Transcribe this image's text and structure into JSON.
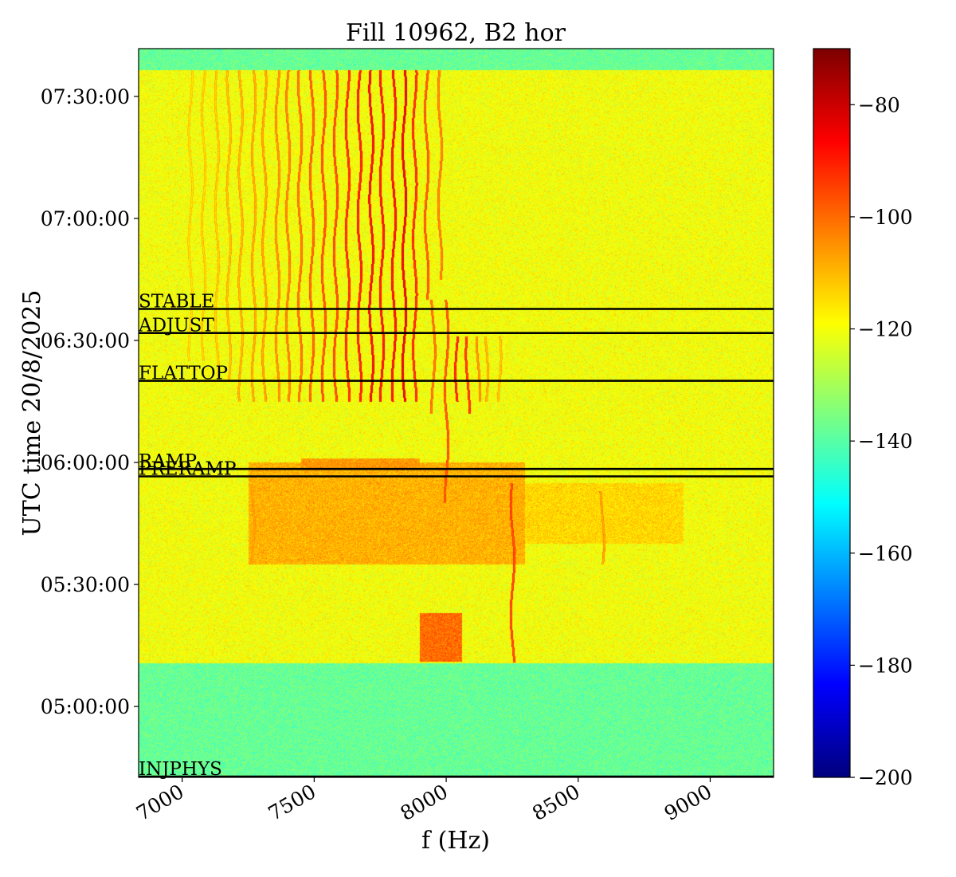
{
  "chart_data": {
    "type": "heatmap",
    "title": "Fill 10962, B2 hor",
    "xlabel": "f (Hz)",
    "ylabel": "UTC time 20/8/2025",
    "xlim": [
      6835,
      9240
    ],
    "x_ticks": [
      7000,
      7500,
      8000,
      8500,
      9000
    ],
    "x_tick_labels": [
      "7000",
      "7500",
      "8000",
      "8500",
      "9000"
    ],
    "x_tick_rotation_deg": -30,
    "ylim": [
      "04:42:35",
      "07:41:45"
    ],
    "y_ticks": [
      "05:00:00",
      "05:30:00",
      "06:00:00",
      "06:30:00",
      "07:00:00",
      "07:30:00"
    ],
    "y_tick_labels": [
      "05:00:00",
      "05:30:00",
      "06:00:00",
      "06:30:00",
      "07:00:00",
      "07:30:00"
    ],
    "colormap": "jet",
    "colorbar": {
      "min": -200,
      "max": -70,
      "ticks": [
        -200,
        -180,
        -160,
        -140,
        -120,
        -100,
        -80
      ],
      "tick_labels": [
        "−200",
        "−180",
        "−160",
        "−140",
        "−120",
        "−100",
        "−80"
      ]
    },
    "events": [
      {
        "label": "STABLE",
        "time": "06:37:45"
      },
      {
        "label": "ADJUST",
        "time": "06:31:50"
      },
      {
        "label": "FLATTOP",
        "time": "06:20:05"
      },
      {
        "label": "RAMP",
        "time": "05:58:25"
      },
      {
        "label": "PRERAMP",
        "time": "05:56:35"
      },
      {
        "label": "INJPHYS",
        "time": "04:42:35"
      }
    ],
    "beam_period": [
      "05:10:45",
      "07:36:30"
    ],
    "background_level_no_beam": -138,
    "background_level_beam": -120,
    "lines": [
      {
        "freq": 7030,
        "start": "06:25:00",
        "end": "07:36:30",
        "level": -117
      },
      {
        "freq": 7080,
        "start": "06:25:00",
        "end": "07:36:30",
        "level": -116
      },
      {
        "freq": 7130,
        "start": "06:20:00",
        "end": "07:36:30",
        "level": -115
      },
      {
        "freq": 7175,
        "start": "06:20:00",
        "end": "07:36:30",
        "level": -113
      },
      {
        "freq": 7220,
        "start": "06:15:00",
        "end": "07:36:30",
        "level": -112
      },
      {
        "freq": 7270,
        "start": "06:15:00",
        "end": "07:36:30",
        "level": -111
      },
      {
        "freq": 7310,
        "start": "06:15:00",
        "end": "07:36:30",
        "level": -110
      },
      {
        "freq": 7360,
        "start": "06:15:00",
        "end": "07:36:30",
        "level": -108
      },
      {
        "freq": 7400,
        "start": "06:15:00",
        "end": "07:36:30",
        "level": -106
      },
      {
        "freq": 7445,
        "start": "06:15:00",
        "end": "07:36:30",
        "level": -104
      },
      {
        "freq": 7490,
        "start": "06:15:00",
        "end": "07:36:30",
        "level": -102
      },
      {
        "freq": 7535,
        "start": "06:15:00",
        "end": "07:36:30",
        "level": -100
      },
      {
        "freq": 7580,
        "start": "06:15:00",
        "end": "07:36:30",
        "level": -99
      },
      {
        "freq": 7625,
        "start": "06:15:00",
        "end": "07:36:30",
        "level": -95
      },
      {
        "freq": 7670,
        "start": "06:15:00",
        "end": "07:36:30",
        "level": -93
      },
      {
        "freq": 7715,
        "start": "06:15:00",
        "end": "07:36:30",
        "level": -90
      },
      {
        "freq": 7755,
        "start": "06:15:00",
        "end": "07:36:30",
        "level": -92
      },
      {
        "freq": 7800,
        "start": "06:15:00",
        "end": "07:36:30",
        "level": -91
      },
      {
        "freq": 7840,
        "start": "06:15:00",
        "end": "07:36:30",
        "level": -88
      },
      {
        "freq": 7880,
        "start": "06:15:00",
        "end": "07:36:30",
        "level": -95
      },
      {
        "freq": 7925,
        "start": "06:40:00",
        "end": "07:36:30",
        "level": -101
      },
      {
        "freq": 7975,
        "start": "06:45:00",
        "end": "07:36:30",
        "level": -106
      },
      {
        "freq": 7950,
        "start": "06:12:00",
        "end": "06:40:00",
        "level": -104
      },
      {
        "freq": 8000,
        "start": "05:50:00",
        "end": "06:40:00",
        "level": -100
      },
      {
        "freq": 8040,
        "start": "06:15:00",
        "end": "06:31:00",
        "level": -94
      },
      {
        "freq": 8080,
        "start": "06:12:00",
        "end": "06:31:00",
        "level": -96
      },
      {
        "freq": 8120,
        "start": "06:15:00",
        "end": "06:31:00",
        "level": -108
      },
      {
        "freq": 8150,
        "start": "06:15:00",
        "end": "06:31:00",
        "level": -112
      },
      {
        "freq": 8200,
        "start": "06:15:00",
        "end": "06:31:00",
        "level": -114
      },
      {
        "freq": 8250,
        "start": "05:10:45",
        "end": "05:55:00",
        "level": -98
      },
      {
        "freq": 8590,
        "start": "05:35:00",
        "end": "05:53:00",
        "level": -110
      },
      {
        "freq": 7265,
        "start": "05:35:00",
        "end": "05:53:00",
        "level": -111
      }
    ],
    "blobs": [
      {
        "f0": 7250,
        "f1": 8300,
        "t0": "05:35:00",
        "t1": "06:00:00",
        "level": -109
      },
      {
        "f0": 8250,
        "f1": 8900,
        "t0": "05:40:00",
        "t1": "05:55:00",
        "level": -114
      },
      {
        "f0": 7450,
        "f1": 7900,
        "t0": "05:58:00",
        "t1": "06:01:00",
        "level": -106
      },
      {
        "f0": 7900,
        "f1": 8060,
        "t0": "05:11:00",
        "t1": "05:23:00",
        "level": -100
      }
    ]
  }
}
